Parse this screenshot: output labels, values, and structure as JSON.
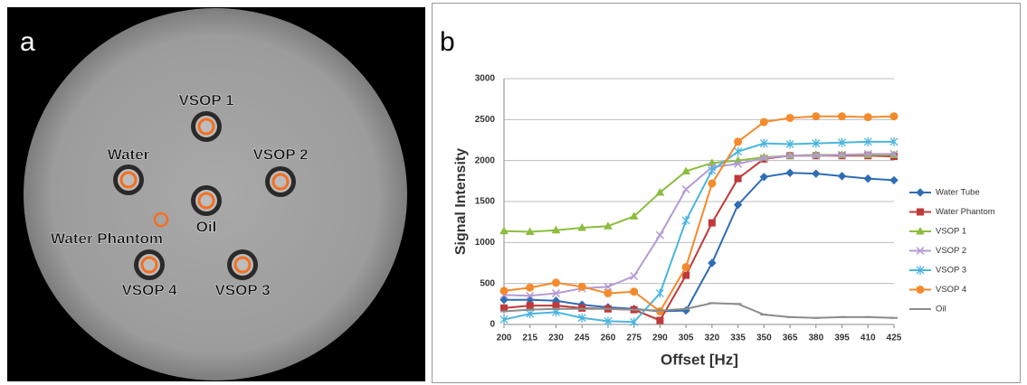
{
  "image_panel": {
    "label": "a",
    "annotations": [
      "VSOP 1",
      "Water",
      "VSOP 2",
      "Oil",
      "Water Phantom",
      "VSOP 4",
      "VSOP 3"
    ]
  },
  "chart_panel_label": "b",
  "chart_data": {
    "type": "line",
    "x_label": "Offset [Hz]",
    "y_label": "Signal Intensity",
    "x": [
      200,
      215,
      230,
      245,
      260,
      275,
      290,
      305,
      320,
      335,
      350,
      365,
      380,
      395,
      410,
      425
    ],
    "xlim": [
      200,
      425
    ],
    "xticks": [
      200,
      215,
      230,
      245,
      260,
      275,
      290,
      305,
      320,
      335,
      350,
      365,
      380,
      395,
      410,
      425
    ],
    "ylim": [
      0,
      3000
    ],
    "yticks": [
      0,
      500,
      1000,
      1500,
      2000,
      2500,
      3000
    ],
    "grid": true,
    "legend": "right",
    "series": [
      {
        "name": "Water Tube",
        "color": "#2f6db5",
        "marker": "diamond",
        "values": [
          300,
          300,
          290,
          240,
          210,
          190,
          160,
          170,
          750,
          1460,
          1800,
          1850,
          1840,
          1810,
          1780,
          1760
        ]
      },
      {
        "name": "Water Phantom",
        "color": "#c0393b",
        "marker": "square",
        "values": [
          200,
          230,
          230,
          200,
          190,
          180,
          50,
          600,
          1240,
          1780,
          2020,
          2060,
          2060,
          2060,
          2060,
          2050
        ]
      },
      {
        "name": "VSOP 1",
        "color": "#8cbd3f",
        "marker": "triangle",
        "values": [
          1140,
          1130,
          1150,
          1180,
          1200,
          1320,
          1610,
          1870,
          1970,
          2000,
          2040,
          2060,
          2070,
          2070,
          2070,
          2070
        ]
      },
      {
        "name": "VSOP 2",
        "color": "#b49ad6",
        "marker": "cross",
        "values": [
          360,
          350,
          380,
          440,
          460,
          590,
          1090,
          1650,
          1920,
          1960,
          2030,
          2060,
          2060,
          2070,
          2080,
          2080
        ]
      },
      {
        "name": "VSOP 3",
        "color": "#4bb5e0",
        "marker": "star",
        "values": [
          60,
          130,
          150,
          80,
          40,
          30,
          380,
          1270,
          1880,
          2110,
          2210,
          2200,
          2210,
          2220,
          2230,
          2230
        ]
      },
      {
        "name": "VSOP 4",
        "color": "#f58a2c",
        "marker": "circle",
        "values": [
          410,
          450,
          510,
          460,
          380,
          400,
          160,
          700,
          1720,
          2230,
          2470,
          2520,
          2540,
          2540,
          2530,
          2540
        ]
      },
      {
        "name": "Oil",
        "color": "#8c8c8c",
        "marker": "dash",
        "values": [
          160,
          180,
          190,
          190,
          190,
          180,
          170,
          190,
          260,
          250,
          120,
          90,
          80,
          90,
          90,
          80
        ]
      }
    ]
  }
}
